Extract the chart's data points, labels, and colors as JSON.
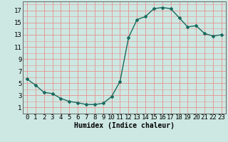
{
  "x": [
    0,
    1,
    2,
    3,
    4,
    5,
    6,
    7,
    8,
    9,
    10,
    11,
    12,
    13,
    14,
    15,
    16,
    17,
    18,
    19,
    20,
    21,
    22,
    23
  ],
  "y": [
    5.7,
    4.7,
    3.5,
    3.3,
    2.5,
    2.0,
    1.8,
    1.5,
    1.5,
    1.7,
    2.8,
    5.3,
    12.5,
    15.5,
    16.0,
    17.3,
    17.5,
    17.3,
    15.8,
    14.3,
    14.5,
    13.2,
    12.8,
    13.0
  ],
  "line_color": "#1a6b5e",
  "marker": "D",
  "markersize": 2.0,
  "linewidth": 1.0,
  "bg_color": "#cde8e2",
  "grid_color": "#e89090",
  "xlabel": "Humidex (Indice chaleur)",
  "xlabel_fontsize": 7,
  "xtick_labels": [
    "0",
    "1",
    "2",
    "3",
    "4",
    "5",
    "6",
    "7",
    "8",
    "9",
    "10",
    "11",
    "12",
    "13",
    "14",
    "15",
    "16",
    "17",
    "18",
    "19",
    "20",
    "21",
    "22",
    "23"
  ],
  "ytick_values": [
    1,
    3,
    5,
    7,
    9,
    11,
    13,
    15,
    17
  ],
  "ylim": [
    0.0,
    18.5
  ],
  "xlim": [
    -0.5,
    23.5
  ],
  "tick_fontsize": 6.5
}
